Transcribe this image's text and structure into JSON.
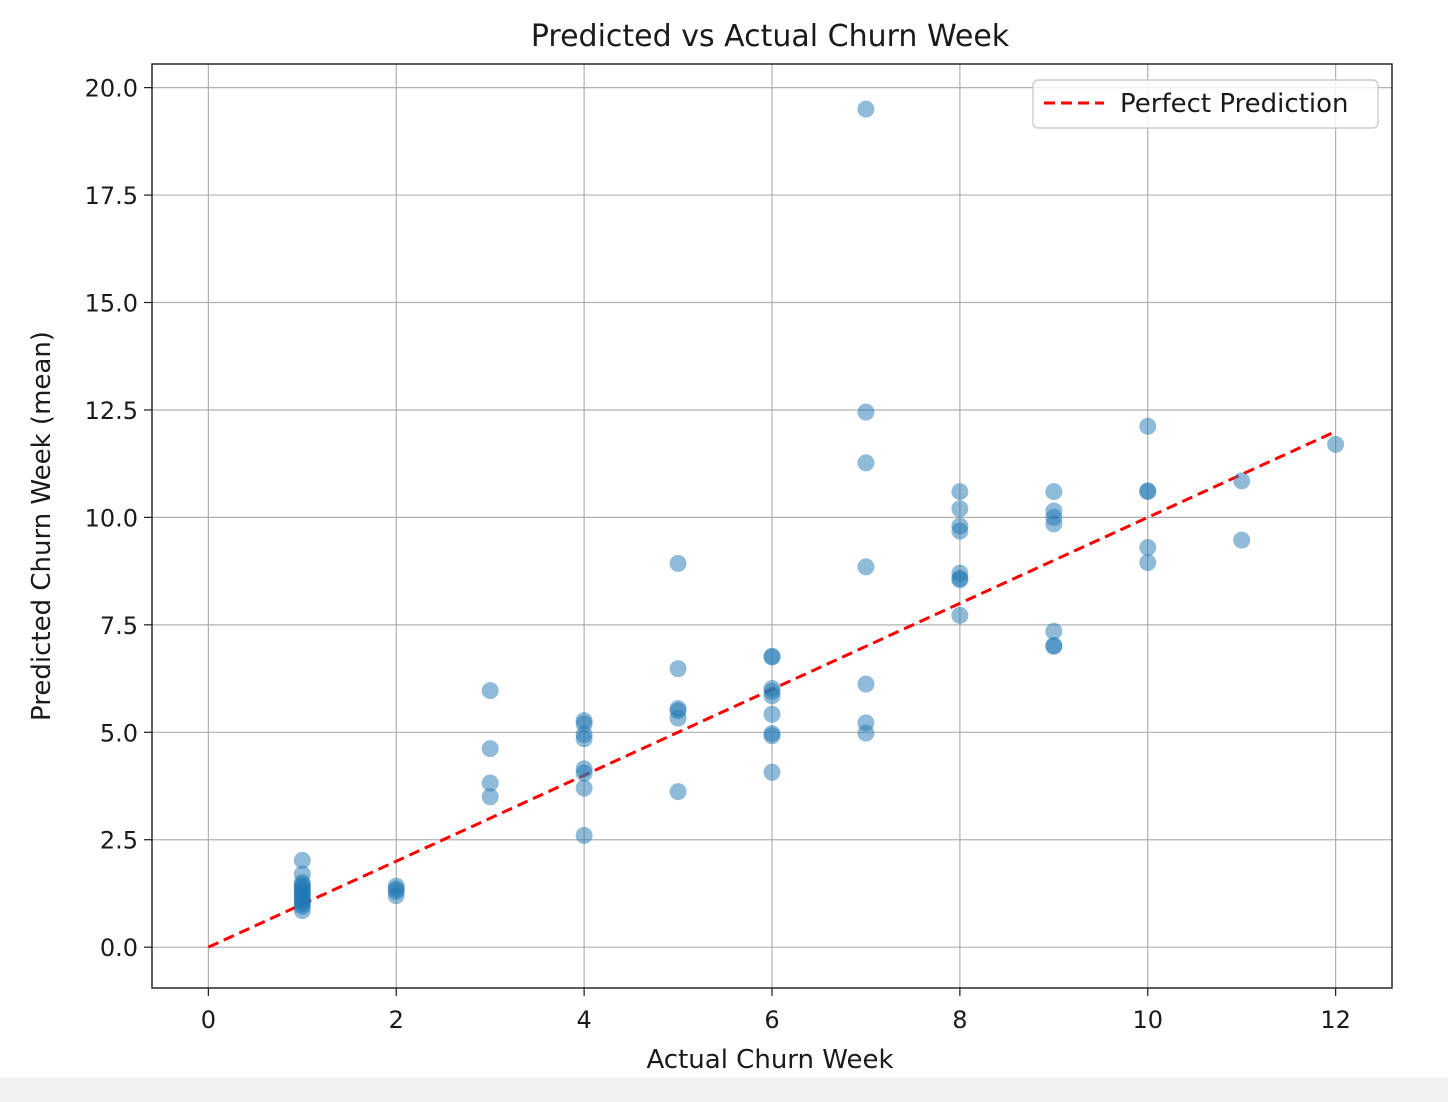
{
  "chart_data": {
    "type": "scatter",
    "title": "Predicted vs Actual Churn Week",
    "xlabel": "Actual Churn Week",
    "ylabel": "Predicted Churn Week (mean)",
    "xlim": [
      -0.6,
      12.6
    ],
    "ylim": [
      -0.95,
      20.55
    ],
    "xticks": [
      0,
      2,
      4,
      6,
      8,
      10,
      12
    ],
    "xtick_labels": [
      "0",
      "2",
      "4",
      "6",
      "8",
      "10",
      "12"
    ],
    "yticks": [
      0,
      2.5,
      5,
      7.5,
      10,
      12.5,
      15,
      17.5,
      20
    ],
    "ytick_labels": [
      "0.0",
      "2.5",
      "5.0",
      "7.5",
      "10.0",
      "12.5",
      "15.0",
      "17.5",
      "20.0"
    ],
    "grid": true,
    "legend": {
      "position": "upper right",
      "entries": [
        "Perfect Prediction"
      ]
    },
    "series": [
      {
        "kind": "scatter",
        "color": "#1f77b4",
        "opacity": 0.5,
        "x": [
          1,
          1,
          1,
          1,
          1,
          1,
          1,
          1,
          1,
          1,
          1,
          1,
          1,
          1,
          1,
          2,
          2,
          2,
          2,
          3,
          3,
          3,
          3,
          4,
          4,
          4,
          4,
          4,
          4,
          4,
          4,
          5,
          5,
          5,
          5,
          5,
          5,
          6,
          6,
          6,
          6,
          6,
          6,
          6,
          6,
          6,
          7,
          7,
          7,
          7,
          7,
          7,
          7,
          8,
          8,
          8,
          8,
          8,
          8,
          8,
          8,
          9,
          9,
          9,
          9,
          9,
          9,
          9,
          10,
          10,
          10,
          10,
          10,
          11,
          11,
          12
        ],
        "y": [
          2.02,
          1.7,
          1.5,
          1.45,
          1.4,
          1.35,
          1.3,
          1.25,
          1.2,
          1.15,
          1.1,
          1.05,
          1.0,
          0.95,
          0.85,
          1.42,
          1.35,
          1.3,
          1.2,
          5.97,
          4.62,
          3.82,
          3.5,
          5.27,
          5.2,
          4.95,
          4.85,
          4.15,
          4.05,
          3.7,
          2.6,
          8.93,
          6.48,
          5.55,
          5.5,
          5.33,
          3.62,
          6.77,
          6.75,
          6.02,
          5.95,
          5.85,
          5.42,
          4.97,
          4.92,
          4.07,
          19.5,
          12.45,
          11.27,
          8.85,
          6.12,
          5.22,
          4.98,
          10.6,
          10.2,
          9.8,
          9.68,
          8.7,
          8.58,
          8.55,
          7.72,
          10.6,
          10.15,
          10.0,
          9.85,
          7.35,
          7.02,
          7.0,
          12.12,
          10.62,
          10.6,
          9.3,
          8.95,
          10.85,
          9.47,
          11.7
        ]
      },
      {
        "kind": "line",
        "name": "Perfect Prediction",
        "color": "#ff0000",
        "dash": "dashed",
        "x": [
          0,
          12
        ],
        "y": [
          0,
          12
        ]
      }
    ]
  }
}
